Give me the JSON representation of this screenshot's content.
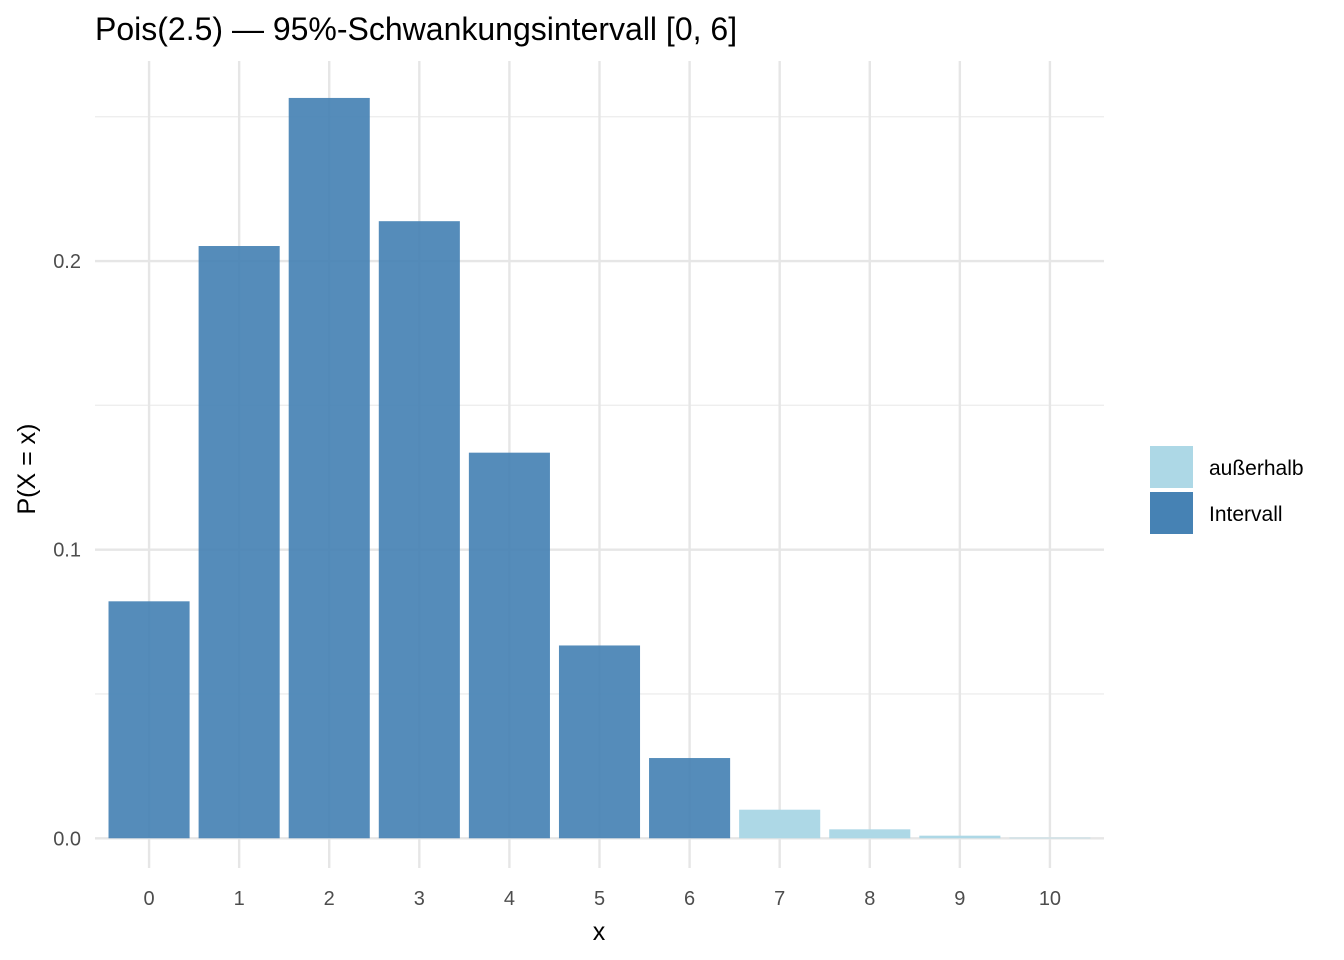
{
  "chart_data": {
    "type": "bar",
    "title": "Pois(2.5) — 95%-Schwankungsintervall [0, 6]",
    "xlabel": "x",
    "ylabel": "P(X = x)",
    "categories": [
      "0",
      "1",
      "2",
      "3",
      "4",
      "5",
      "6",
      "7",
      "8",
      "9",
      "10"
    ],
    "values": [
      0.0821,
      0.2052,
      0.2565,
      0.2138,
      0.1336,
      0.0668,
      0.0278,
      0.0099,
      0.0031,
      0.0009,
      0.0002
    ],
    "groups": [
      "Intervall",
      "Intervall",
      "Intervall",
      "Intervall",
      "Intervall",
      "Intervall",
      "Intervall",
      "außerhalb",
      "außerhalb",
      "außerhalb",
      "außerhalb"
    ],
    "ylim": [
      -0.0103,
      0.2693
    ],
    "yticks": [
      0.0,
      0.1,
      0.2
    ],
    "ytick_labels": [
      "0.0",
      "0.1",
      "0.2"
    ],
    "grid": true,
    "legend_position": "right",
    "legend": [
      {
        "label": "außerhalb",
        "color": "#ADD8E6"
      },
      {
        "label": "Intervall",
        "color": "#4682B4"
      }
    ],
    "colors": {
      "Intervall": "#4682B4",
      "außerhalb": "#ADD8E6"
    }
  }
}
